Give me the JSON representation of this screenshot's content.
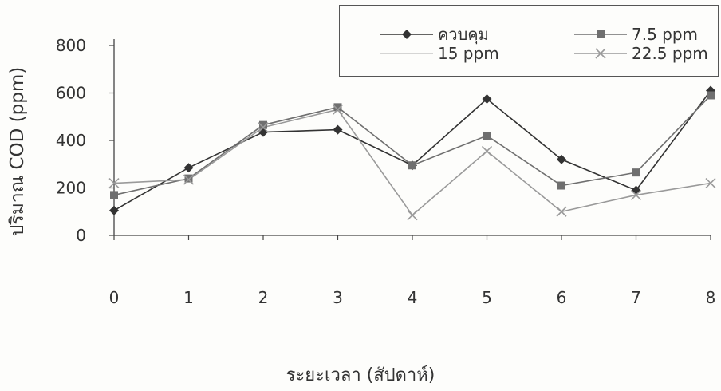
{
  "chart_data": {
    "type": "line",
    "title": "",
    "xlabel": "ระยะเวลา (สัปดาห์)",
    "ylabel": "ปริมาณ COD (ppm)",
    "x": [
      0,
      1,
      2,
      3,
      4,
      5,
      6,
      7,
      8
    ],
    "x_tick_labels": [
      "0",
      "1",
      "2",
      "3",
      "4",
      "5",
      "6",
      "7",
      "8"
    ],
    "y_ticks": [
      0,
      200,
      400,
      600,
      800
    ],
    "y_tick_labels": [
      "0",
      "200",
      "400",
      "600",
      "800"
    ],
    "ylim": [
      0,
      800
    ],
    "grid": false,
    "legend_position": "top-right",
    "series": [
      {
        "name": "ควบคุม",
        "marker": "diamond",
        "color": "#333333",
        "values": [
          105,
          285,
          435,
          445,
          295,
          575,
          320,
          190,
          610
        ]
      },
      {
        "name": "7.5 ppm",
        "marker": "square",
        "color": "#6f6f6f",
        "values": [
          170,
          240,
          465,
          540,
          295,
          420,
          210,
          265,
          590
        ]
      },
      {
        "name": "15 ppm",
        "marker": "none",
        "color": "#c8c8c8",
        "values": [
          null,
          null,
          null,
          null,
          null,
          null,
          null,
          null,
          null
        ]
      },
      {
        "name": "22.5 ppm",
        "marker": "x",
        "color": "#9a9a9a",
        "values": [
          220,
          235,
          455,
          530,
          85,
          355,
          100,
          170,
          220
        ]
      }
    ]
  }
}
